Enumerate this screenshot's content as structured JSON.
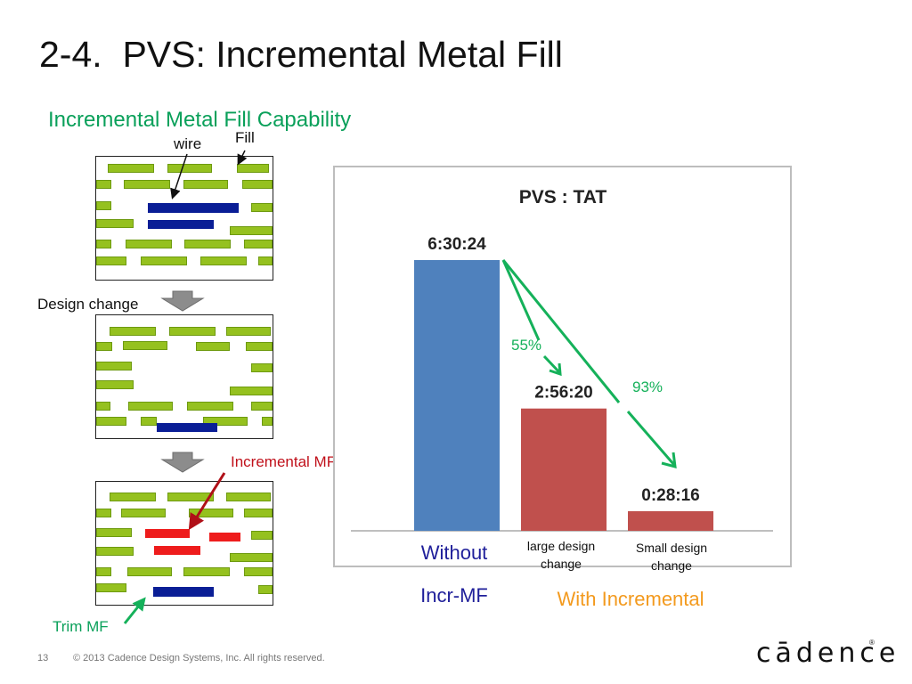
{
  "slide": {
    "number": "2-4.",
    "title": "PVS: Incremental Metal Fill",
    "subtitle": "Incremental Metal Fill Capability"
  },
  "diagram": {
    "label_wire": "wire",
    "label_fill": "Fill",
    "label_design_change": "Design change",
    "label_incremental_mf": "Incremental MF",
    "label_trim_mf": "Trim MF"
  },
  "chart_data": {
    "type": "bar",
    "title": "PVS : TAT",
    "categories": [
      "Without Incr-MF",
      "large design change",
      "Small design change"
    ],
    "values": [
      "6:30:24",
      "2:56:20",
      "0:28:16"
    ],
    "values_seconds": [
      23424,
      10580,
      1696
    ],
    "bar_colors": [
      "#4f81bd",
      "#c0504d",
      "#c0504d"
    ],
    "annotations": [
      "55%",
      "93%"
    ],
    "category_labels": {
      "without_line1": "Without",
      "without_line2": "Incr-MF",
      "large_line1": "large design",
      "large_line2": "change",
      "small_line1": "Small design",
      "small_line2": "change"
    },
    "group_label": "With Incremental"
  },
  "colors": {
    "accent": "#0aa05a",
    "red": "#c0101a",
    "orange": "#f39a1e",
    "navy": "#1f1f9a"
  },
  "footer": {
    "page": "13",
    "copyright": "© 2013 Cadence Design Systems, Inc. All rights reserved.",
    "logo": "cādence",
    "logo_mark": "®"
  }
}
